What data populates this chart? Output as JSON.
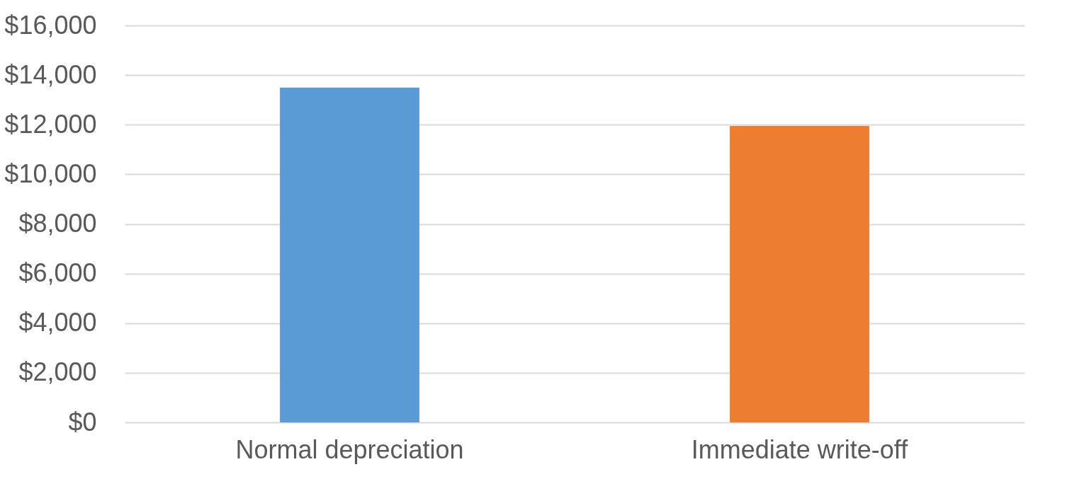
{
  "chart_data": {
    "type": "bar",
    "categories": [
      "Normal depreciation",
      "Immediate write-off"
    ],
    "colors": [
      "#5b9bd5",
      "#ed7d31"
    ],
    "values": [
      13500,
      11950
    ],
    "ylim": [
      0,
      16000
    ],
    "yticks": [
      {
        "value": 0,
        "label": "$0"
      },
      {
        "value": 2000,
        "label": "$2,000"
      },
      {
        "value": 4000,
        "label": "$4,000"
      },
      {
        "value": 6000,
        "label": "$6,000"
      },
      {
        "value": 8000,
        "label": "$8,000"
      },
      {
        "value": 10000,
        "label": "$10,000"
      },
      {
        "value": 12000,
        "label": "$12,000"
      },
      {
        "value": 14000,
        "label": "$14,000"
      },
      {
        "value": 16000,
        "label": "$16,000"
      }
    ],
    "grid": "y"
  }
}
